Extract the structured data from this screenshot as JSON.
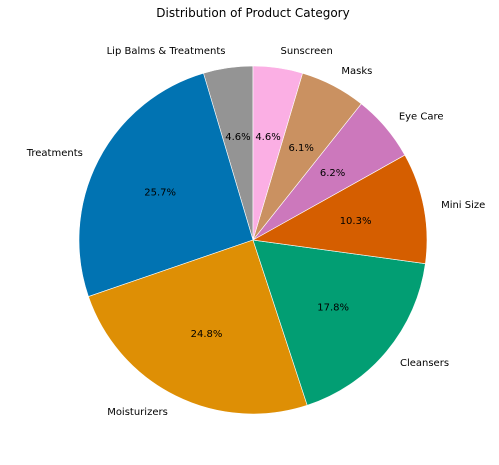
{
  "chart_data": {
    "type": "pie",
    "title": "Distribution of Product Category",
    "start_angle_deg": 90,
    "direction": "counterclockwise",
    "slices": [
      {
        "label": "Lip Balms & Treatments",
        "value": 4.6,
        "pct_label": "4.6%",
        "color": "#949494"
      },
      {
        "label": "Treatments",
        "value": 25.7,
        "pct_label": "25.7%",
        "color": "#0173b2"
      },
      {
        "label": "Moisturizers",
        "value": 24.8,
        "pct_label": "24.8%",
        "color": "#de8f05"
      },
      {
        "label": "Cleansers",
        "value": 17.8,
        "pct_label": "17.8%",
        "color": "#029e73"
      },
      {
        "label": "Mini Size",
        "value": 10.3,
        "pct_label": "10.3%",
        "color": "#d55e00"
      },
      {
        "label": "Eye Care",
        "value": 6.2,
        "pct_label": "6.2%",
        "color": "#cc78bc"
      },
      {
        "label": "Masks",
        "value": 6.1,
        "pct_label": "6.1%",
        "color": "#ca9161"
      },
      {
        "label": "Sunscreen",
        "value": 4.6,
        "pct_label": "4.6%",
        "color": "#fbafe4"
      }
    ]
  }
}
